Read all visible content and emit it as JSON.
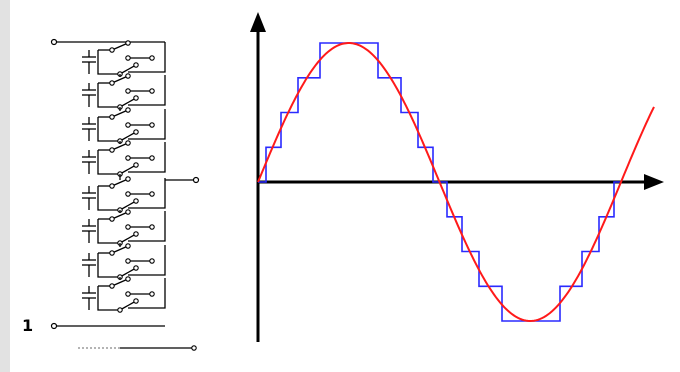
{
  "figure": {
    "label": "1",
    "description_colors": {
      "stepped_wave": "#2a2aff",
      "sine_wave": "#ff1a1a",
      "axes": "#000000",
      "circuit": "#000000",
      "circuit_dots": "#888888"
    }
  },
  "circuit": {
    "cells": 8,
    "type": "cascaded-capacitor-switch-cells"
  },
  "waveform": {
    "levels": 8,
    "steps_per_quarter": 4,
    "cycles": 1,
    "icons": [
      "y-axis-arrow-icon",
      "x-axis-arrow-icon"
    ]
  }
}
